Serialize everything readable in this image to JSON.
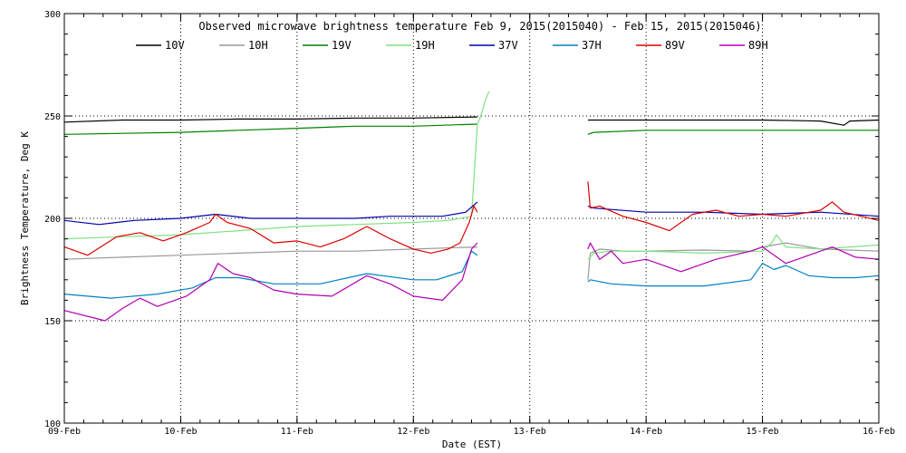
{
  "chart_data": {
    "type": "line",
    "title": "Observed microwave brightness temperature Feb  9, 2015(2015040) - Feb 15, 2015(2015046)",
    "xlabel": "Date (EST)",
    "ylabel": "Brightness Temperature, Deg K",
    "xlim": [
      0,
      7
    ],
    "ylim": [
      100,
      300
    ],
    "x_tick_values": [
      0,
      1,
      2,
      3,
      4,
      5,
      6,
      7
    ],
    "x_tick_labels": [
      "09-Feb",
      "10-Feb",
      "11-Feb",
      "12-Feb",
      "13-Feb",
      "14-Feb",
      "15-Feb",
      "16-Feb"
    ],
    "y_ticks": [
      100,
      150,
      200,
      250,
      300
    ],
    "grid": "dotted",
    "legend_position": "top",
    "series": [
      {
        "name": "10V",
        "color": "#000000",
        "segments": [
          {
            "x": [
              0,
              0.5,
              1,
              1.5,
              2,
              2.5,
              3,
              3.55
            ],
            "y": [
              247,
              248,
              248,
              248.5,
              248.5,
              249,
              249,
              249.5
            ]
          },
          {
            "x": [
              4.5,
              5,
              5.5,
              6,
              6.5,
              6.7,
              6.75,
              7
            ],
            "y": [
              248,
              248,
              248,
              248,
              247.5,
              245.5,
              247.5,
              248
            ]
          }
        ]
      },
      {
        "name": "10H",
        "color": "#999999",
        "segments": [
          {
            "x": [
              0,
              0.5,
              1,
              1.5,
              2,
              2.5,
              3,
              3.55
            ],
            "y": [
              180,
              181,
              182,
              183,
              184,
              184,
              185,
              186
            ]
          },
          {
            "x": [
              4.5,
              4.52,
              4.6,
              4.8,
              5,
              5.5,
              5.9,
              6,
              6.2,
              6.5,
              7
            ],
            "y": [
              170,
              183,
              185,
              184,
              184,
              184.5,
              184,
              186,
              188,
              185,
              184
            ]
          }
        ]
      },
      {
        "name": "19V",
        "color": "#008000",
        "segments": [
          {
            "x": [
              0,
              0.5,
              1,
              1.5,
              2,
              2.5,
              3,
              3.55
            ],
            "y": [
              241,
              241.5,
              242,
              243,
              244,
              245,
              245,
              246
            ]
          },
          {
            "x": [
              4.5,
              4.55,
              5,
              5.5,
              6,
              6.5,
              7
            ],
            "y": [
              241,
              242,
              243,
              243,
              243,
              243,
              243
            ]
          }
        ]
      },
      {
        "name": "19H",
        "color": "#80e080",
        "segments": [
          {
            "x": [
              0,
              0.5,
              1,
              1.5,
              2,
              2.5,
              3,
              3.3,
              3.5,
              3.55,
              3.58,
              3.62,
              3.65
            ],
            "y": [
              190,
              191,
              192,
              194,
              196,
              197,
              198,
              199,
              201,
              246,
              250,
              258,
              262
            ]
          },
          {
            "x": [
              4.5,
              4.55,
              4.7,
              5,
              5.5,
              6,
              6.08,
              6.12,
              6.2,
              6.5,
              7
            ],
            "y": [
              180,
              183,
              184,
              184,
              183,
              184,
              188,
              192,
              186,
              185,
              187
            ]
          }
        ]
      },
      {
        "name": "37V",
        "color": "#0000aa",
        "segments": [
          {
            "x": [
              0,
              0.3,
              0.6,
              1,
              1.3,
              1.6,
              2,
              2.5,
              2.8,
              3,
              3.25,
              3.45,
              3.55
            ],
            "y": [
              199,
              197,
              199,
              200,
              202,
              200,
              200,
              200,
              201,
              201,
              201,
              203,
              208
            ]
          },
          {
            "x": [
              4.5,
              4.55,
              5,
              5.5,
              6,
              6.5,
              7
            ],
            "y": [
              206,
              205,
              203,
              203,
              202,
              203,
              201
            ]
          }
        ]
      },
      {
        "name": "37H",
        "color": "#0080c0",
        "segments": [
          {
            "x": [
              0,
              0.4,
              0.8,
              1.1,
              1.3,
              1.5,
              1.8,
              2.2,
              2.6,
              3,
              3.2,
              3.42,
              3.5,
              3.55
            ],
            "y": [
              163,
              161,
              163,
              166,
              171,
              171,
              168,
              168,
              173,
              170,
              170,
              174,
              184,
              182
            ]
          },
          {
            "x": [
              4.5,
              4.52,
              4.7,
              5,
              5.5,
              5.9,
              6,
              6.1,
              6.2,
              6.4,
              6.6,
              6.8,
              7
            ],
            "y": [
              169,
              170,
              168,
              167,
              167,
              170,
              178,
              175,
              177,
              172,
              171,
              171,
              172
            ]
          }
        ]
      },
      {
        "name": "89V",
        "color": "#dd0000",
        "segments": [
          {
            "x": [
              0,
              0.2,
              0.45,
              0.65,
              0.85,
              1.05,
              1.25,
              1.3,
              1.4,
              1.6,
              1.8,
              2,
              2.2,
              2.4,
              2.6,
              2.8,
              3,
              3.15,
              3.3,
              3.4,
              3.48,
              3.52,
              3.55
            ],
            "y": [
              186,
              182,
              191,
              193,
              189,
              193,
              198,
              202,
              198,
              195,
              188,
              189,
              186,
              190,
              196,
              190,
              185,
              183,
              185,
              188,
              198,
              206,
              203
            ]
          },
          {
            "x": [
              4.5,
              4.52,
              4.6,
              4.8,
              5,
              5.2,
              5.4,
              5.6,
              5.8,
              6,
              6.2,
              6.5,
              6.6,
              6.7,
              7
            ],
            "y": [
              218,
              205,
              206,
              201,
              198,
              194,
              202,
              204,
              201,
              202,
              201,
              204,
              208,
              203,
              199
            ]
          }
        ]
      },
      {
        "name": "89H",
        "color": "#b000b0",
        "segments": [
          {
            "x": [
              0,
              0.35,
              0.5,
              0.65,
              0.8,
              1.05,
              1.25,
              1.32,
              1.45,
              1.6,
              1.8,
              2,
              2.3,
              2.6,
              2.8,
              3,
              3.25,
              3.42,
              3.5,
              3.55
            ],
            "y": [
              155,
              150,
              156,
              161,
              157,
              162,
              170,
              178,
              173,
              171,
              165,
              163,
              162,
              172,
              168,
              162,
              160,
              170,
              185,
              188
            ]
          },
          {
            "x": [
              4.5,
              4.52,
              4.6,
              4.7,
              4.8,
              5,
              5.3,
              5.6,
              5.9,
              6,
              6.2,
              6.4,
              6.6,
              6.8,
              7
            ],
            "y": [
              185,
              188,
              180,
              184,
              178,
              180,
              174,
              180,
              184,
              186,
              178,
              182,
              186,
              181,
              180
            ]
          }
        ]
      }
    ]
  }
}
